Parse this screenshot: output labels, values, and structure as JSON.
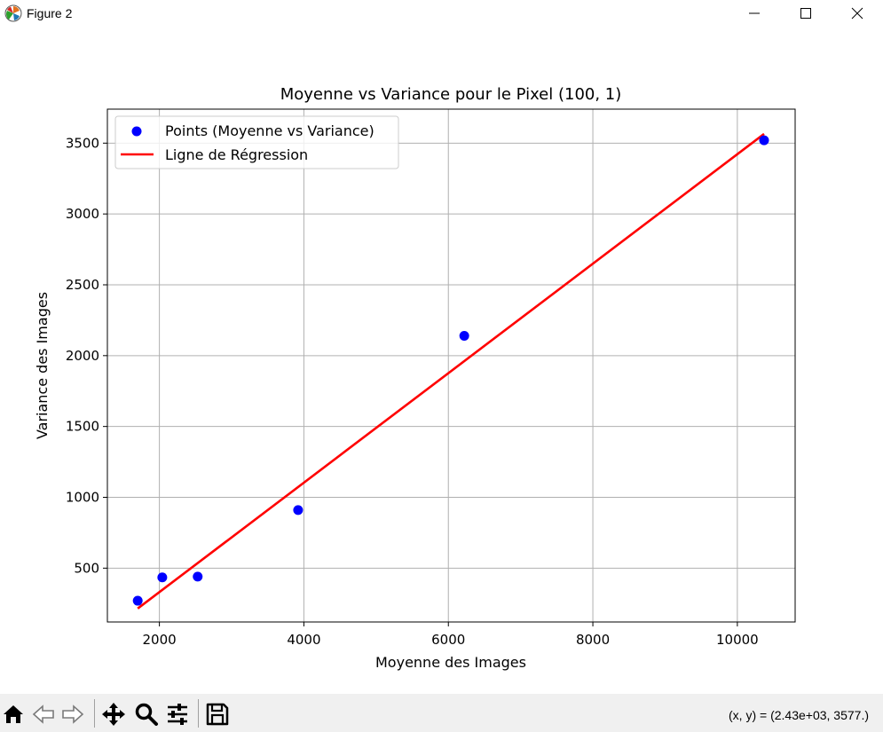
{
  "window": {
    "title": "Figure 2",
    "controls": [
      "minimize",
      "maximize",
      "close"
    ]
  },
  "toolbar": {
    "buttons": [
      "home-icon",
      "back-icon",
      "forward-icon",
      "pan-icon",
      "zoom-icon",
      "configure-subplots-icon",
      "save-icon"
    ],
    "coords_text": "(x, y) = (2.43e+03, 3577.)"
  },
  "chart_data": {
    "type": "scatter",
    "title": "Moyenne vs Variance pour le Pixel (100, 1)",
    "xlabel": "Moyenne des Images",
    "ylabel": "Variance des Images",
    "xlim": [
      1280,
      10800
    ],
    "ylim": [
      120,
      3740
    ],
    "xticks": [
      2000,
      4000,
      6000,
      8000,
      10000
    ],
    "yticks": [
      500,
      1000,
      1500,
      2000,
      2500,
      3000,
      3500
    ],
    "grid": true,
    "legend_position": "top-left",
    "series": [
      {
        "name": "Points (Moyenne vs Variance)",
        "kind": "scatter",
        "color": "#0000ff",
        "points": [
          [
            1700,
            270
          ],
          [
            2040,
            435
          ],
          [
            2530,
            440
          ],
          [
            3920,
            910
          ],
          [
            6220,
            2140
          ],
          [
            10370,
            3520
          ]
        ]
      },
      {
        "name": "Ligne de Régression",
        "kind": "line",
        "color": "#ff0000",
        "points": [
          [
            1700,
            215
          ],
          [
            10370,
            3565
          ]
        ]
      }
    ]
  }
}
